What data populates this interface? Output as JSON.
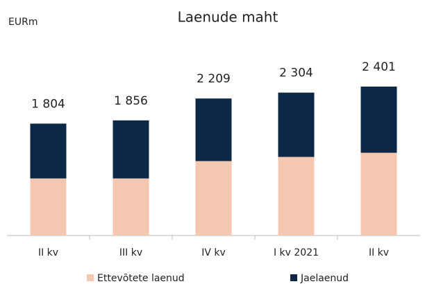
{
  "chart_data": {
    "type": "stacked_bar",
    "title": "Laenude maht",
    "unit_label": "EURm",
    "categories": [
      "II kv",
      "III kv",
      "IV kv",
      "I kv 2021",
      "II kv"
    ],
    "series": [
      {
        "name": "Ettevõtete laenud",
        "color": "#f4c7b0",
        "values": [
          920,
          920,
          1200,
          1267,
          1334
        ]
      },
      {
        "name": "Jaelaenud",
        "color": "#0d2847",
        "values": [
          884,
          936,
          1009,
          1037,
          1067
        ]
      }
    ],
    "totals": [
      1804,
      1856,
      2209,
      2304,
      2401
    ],
    "total_labels": [
      "1 804",
      "1 856",
      "2 209",
      "2 304",
      "2 401"
    ],
    "legend": "bottom"
  }
}
